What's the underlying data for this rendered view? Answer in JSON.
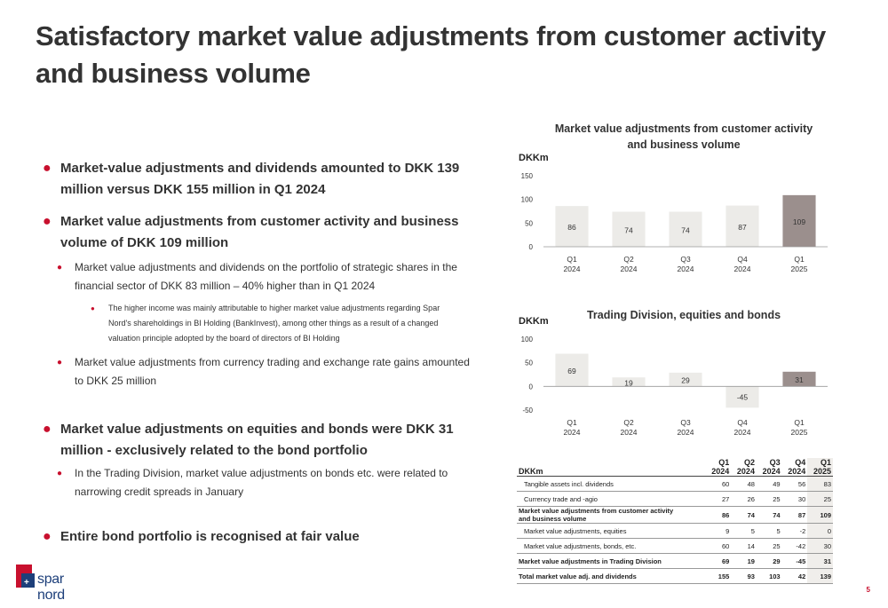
{
  "title": "Satisfactory market value adjustments from customer activity and business volume",
  "bullets": {
    "b1": "Market-value adjustments and dividends amounted to DKK 139 million versus DKK 155 million in Q1 2024",
    "b2": "Market value adjustments from customer activity and business volume of DKK 109 million",
    "b2a": "Market value adjustments and dividends on the portfolio of strategic shares in the financial sector of DKK 83 million – 40% higher than in Q1 2024",
    "b2a1": "The higher income was mainly attributable to higher market value adjustments regarding Spar Nord's shareholdings in BI Holding (BankInvest), among other things as a result of a changed valuation principle adopted by the board of directors of BI Holding",
    "b2b": "Market value adjustments from currency trading and exchange rate gains amounted to DKK 25 million",
    "b3": "Market value adjustments on equities and bonds were DKK 31 million - exclusively related to the bond portfolio",
    "b3a": "In the Trading Division, market value adjustments on bonds etc. were related to narrowing credit spreads in January",
    "b4": "Entire bond portfolio is recognised at fair value"
  },
  "chart_data": [
    {
      "type": "bar",
      "title": "Market value adjustments from customer activity and business volume",
      "ylabel": "DKKm",
      "categories": [
        "Q1\n2024",
        "Q2\n2024",
        "Q3\n2024",
        "Q4\n2024",
        "Q1\n2025"
      ],
      "values": [
        86,
        74,
        74,
        87,
        109
      ],
      "ylim": [
        0,
        150
      ],
      "yticks": [
        0,
        50,
        100,
        150
      ],
      "colors": [
        "#ecebe8",
        "#ecebe8",
        "#ecebe8",
        "#ecebe8",
        "#9b8f8d"
      ]
    },
    {
      "type": "bar",
      "title": "Trading Division, equities and bonds",
      "ylabel": "DKKm",
      "categories": [
        "Q1\n2024",
        "Q2\n2024",
        "Q3\n2024",
        "Q4\n2024",
        "Q1\n2025"
      ],
      "values": [
        69,
        19,
        29,
        -45,
        31
      ],
      "ylim": [
        -50,
        100
      ],
      "yticks": [
        -50,
        0,
        50,
        100
      ],
      "colors": [
        "#ecebe8",
        "#ecebe8",
        "#ecebe8",
        "#ecebe8",
        "#9b8f8d"
      ]
    }
  ],
  "table": {
    "unit": "DKKm",
    "headers": [
      [
        "Q1",
        "2024"
      ],
      [
        "Q2",
        "2024"
      ],
      [
        "Q3",
        "2024"
      ],
      [
        "Q4",
        "2024"
      ],
      [
        "Q1",
        "2025"
      ]
    ],
    "rows": [
      {
        "label": "Tangible assets incl. dividends",
        "values": [
          "60",
          "48",
          "49",
          "56",
          "83"
        ]
      },
      {
        "label": "Currency trade and -agio",
        "values": [
          "27",
          "26",
          "25",
          "30",
          "25"
        ]
      },
      {
        "label": "Market value adjustments from customer activity",
        "label2": "and business volume",
        "values": [
          "86",
          "74",
          "74",
          "87",
          "109"
        ]
      },
      {
        "label": "Market value adjustments, equities",
        "values": [
          "9",
          "5",
          "5",
          "-2",
          "0"
        ]
      },
      {
        "label": "Market value adjustments, bonds, etc.",
        "values": [
          "60",
          "14",
          "25",
          "-42",
          "30"
        ]
      },
      {
        "label": "Market value adjustments in Trading Division",
        "values": [
          "69",
          "19",
          "29",
          "-45",
          "31"
        ]
      },
      {
        "label": "Total market value adj. and dividends",
        "values": [
          "155",
          "93",
          "103",
          "42",
          "139"
        ]
      }
    ]
  },
  "logo": {
    "text": "spar nord",
    "color": "#c8102e",
    "brand_blue": "#1d3f7a"
  },
  "page_number": "5"
}
